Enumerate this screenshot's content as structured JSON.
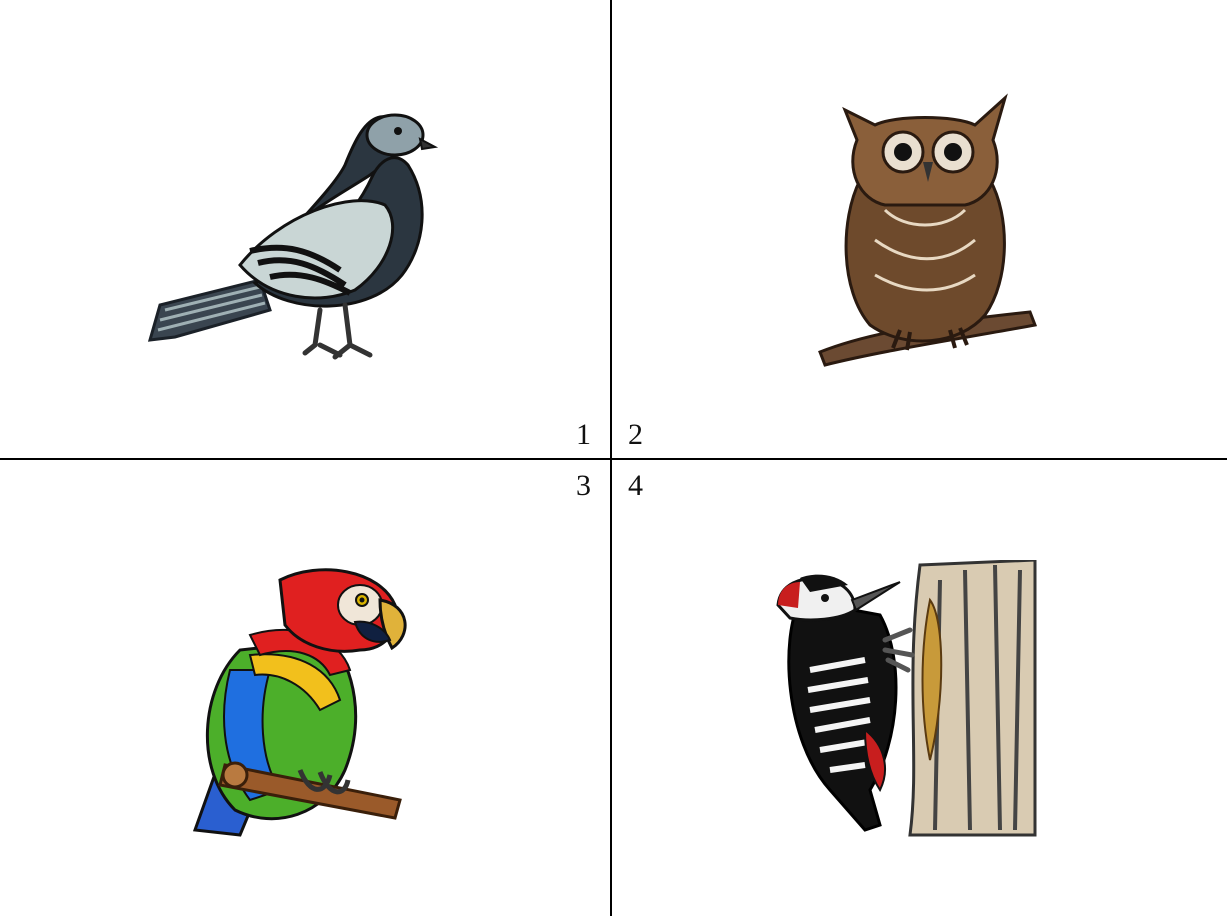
{
  "panels": [
    {
      "label": "1",
      "subject": "pigeon-illustration"
    },
    {
      "label": "2",
      "subject": "owl-illustration"
    },
    {
      "label": "3",
      "subject": "parrot-illustration"
    },
    {
      "label": "4",
      "subject": "woodpecker-illustration"
    }
  ],
  "colors": {
    "divider": "#000000",
    "background": "#ffffff"
  }
}
